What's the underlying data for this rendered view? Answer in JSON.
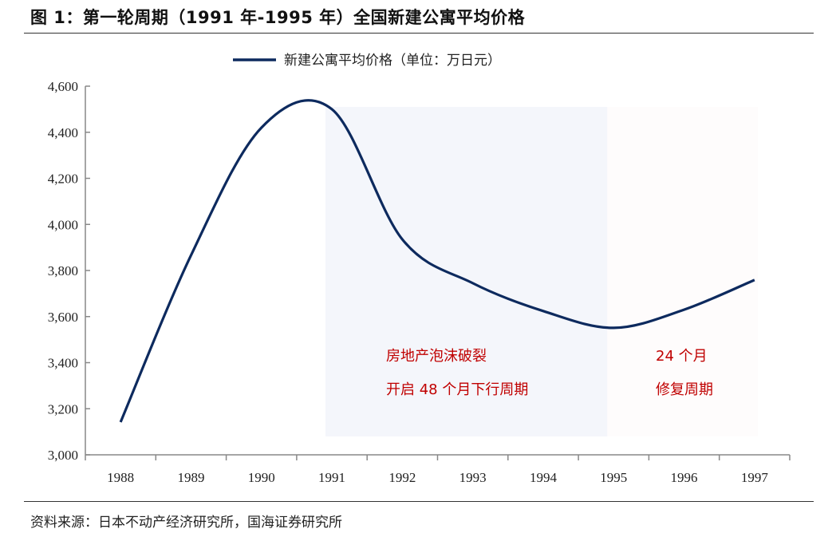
{
  "title": "图 1：第一轮周期（1991 年-1995 年）全国新建公寓平均价格",
  "source": "资料来源：日本不动产经济研究所，国海证券研究所",
  "chart_data": {
    "type": "line",
    "title": "",
    "xlabel": "",
    "ylabel": "",
    "categories": [
      "1988",
      "1989",
      "1990",
      "1991",
      "1992",
      "1993",
      "1994",
      "1995",
      "1996",
      "1997"
    ],
    "series": [
      {
        "name": "新建公寓平均价格（单位：万日元）",
        "color": "#0d2a5e",
        "values": [
          3142,
          3866,
          4420,
          4500,
          3935,
          3745,
          3624,
          3551,
          3630,
          3759
        ]
      }
    ],
    "ylim": [
      3000,
      4600
    ],
    "yticks": [
      3000,
      3200,
      3400,
      3600,
      3800,
      4000,
      4200,
      4400,
      4600
    ],
    "ytick_labels": [
      "3,000",
      "3,200",
      "3,400",
      "3,600",
      "3,800",
      "4,000",
      "4,200",
      "4,400",
      "4,600"
    ],
    "grid": false,
    "legend": "top-center",
    "shaded_regions": [
      {
        "from": "1991",
        "to": "1995",
        "color": "#f4f6fb"
      },
      {
        "from": "1995",
        "to": "1997",
        "color": "#fefcfc"
      }
    ],
    "annotations": [
      {
        "lines": [
          "房地产泡沫破裂",
          "开启 48 个月下行周期"
        ],
        "color": "#c00000"
      },
      {
        "lines": [
          "24 个月",
          "修复周期"
        ],
        "color": "#c00000"
      }
    ]
  }
}
